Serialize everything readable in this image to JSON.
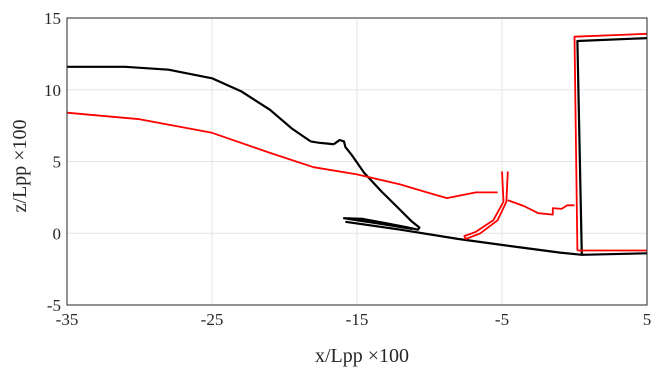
{
  "chart_data": {
    "type": "line",
    "title": "",
    "xlabel": "x/Lpp ×100",
    "ylabel": "z/Lpp ×100",
    "xlim": [
      -35,
      5
    ],
    "ylim": [
      -5,
      15
    ],
    "xticks": [
      -35,
      -25,
      -15,
      -5,
      5
    ],
    "yticks": [
      -5,
      0,
      5,
      10,
      15
    ],
    "xtick_labels": [
      "-35",
      "-25",
      "-15",
      "-5",
      "5"
    ],
    "ytick_labels": [
      "-5",
      "0",
      "5",
      "10",
      "15"
    ],
    "grid": true,
    "legend": "none",
    "series": [
      {
        "color": "#000000",
        "segments": [
          [
            [
              -35,
              11.6
            ],
            [
              -31,
              11.6
            ],
            [
              -28,
              11.4
            ],
            [
              -25,
              10.8
            ],
            [
              -23,
              9.9
            ],
            [
              -21,
              8.6
            ],
            [
              -19.5,
              7.3
            ],
            [
              -18.2,
              6.4
            ]
          ],
          [
            [
              -18.2,
              6.4
            ],
            [
              -17.6,
              6.3
            ],
            [
              -17.0,
              6.25
            ],
            [
              -16.6,
              6.2
            ]
          ],
          [
            [
              -16.6,
              6.2
            ],
            [
              -16.2,
              6.5
            ],
            [
              -15.9,
              6.4
            ],
            [
              -15.8,
              6.0
            ],
            [
              -15.4,
              5.5
            ],
            [
              -14.5,
              4.2
            ],
            [
              -13.3,
              2.9
            ],
            [
              -12.2,
              1.8
            ],
            [
              -11.2,
              0.8
            ],
            [
              -10.7,
              0.4
            ],
            [
              -10.8,
              0.25
            ],
            [
              -11.5,
              0.4
            ],
            [
              -13.0,
              0.7
            ],
            [
              -14.6,
              1.0
            ],
            [
              -15.9,
              1.05
            ],
            [
              -15.0,
              0.9
            ],
            [
              -13.0,
              0.6
            ],
            [
              -11.2,
              0.3
            ]
          ],
          [
            [
              -15.8,
              0.8
            ],
            [
              -12,
              0.25
            ],
            [
              -8,
              -0.4
            ],
            [
              -4,
              -0.95
            ],
            [
              -1,
              -1.35
            ],
            [
              0.5,
              -1.5
            ],
            [
              5,
              -1.4
            ]
          ],
          [
            [
              0.5,
              -1.5
            ],
            [
              0.2,
              13.4
            ],
            [
              5,
              13.6
            ]
          ]
        ]
      },
      {
        "color": "#ff0000",
        "segments": [
          [
            [
              -35,
              8.4
            ],
            [
              -30,
              7.95
            ],
            [
              -25,
              7.0
            ],
            [
              -21,
              5.6
            ],
            [
              -18,
              4.6
            ],
            [
              -15,
              4.1
            ],
            [
              -12,
              3.4
            ],
            [
              -10,
              2.8
            ],
            [
              -8.8,
              2.45
            ],
            [
              -7.8,
              2.65
            ],
            [
              -6.8,
              2.85
            ],
            [
              -5.3,
              2.85
            ]
          ],
          [
            [
              -5.0,
              4.3
            ],
            [
              -4.9,
              2.2
            ],
            [
              -5.6,
              0.9
            ],
            [
              -6.8,
              0.1
            ],
            [
              -7.6,
              -0.2
            ],
            [
              -7.5,
              -0.4
            ],
            [
              -6.5,
              0.0
            ],
            [
              -5.3,
              0.9
            ],
            [
              -4.7,
              2.2
            ],
            [
              -4.6,
              4.3
            ]
          ],
          [
            [
              -4.6,
              2.3
            ],
            [
              -3.5,
              1.9
            ],
            [
              -2.5,
              1.4
            ],
            [
              -1.5,
              1.3
            ],
            [
              -1.5,
              1.75
            ],
            [
              -0.9,
              1.7
            ],
            [
              -0.5,
              1.95
            ],
            [
              0.0,
              1.95
            ]
          ],
          [
            [
              0.2,
              -1.2
            ],
            [
              5,
              -1.2
            ]
          ],
          [
            [
              0.2,
              -1.2
            ],
            [
              0.0,
              13.7
            ],
            [
              5,
              13.9
            ]
          ]
        ]
      }
    ]
  }
}
